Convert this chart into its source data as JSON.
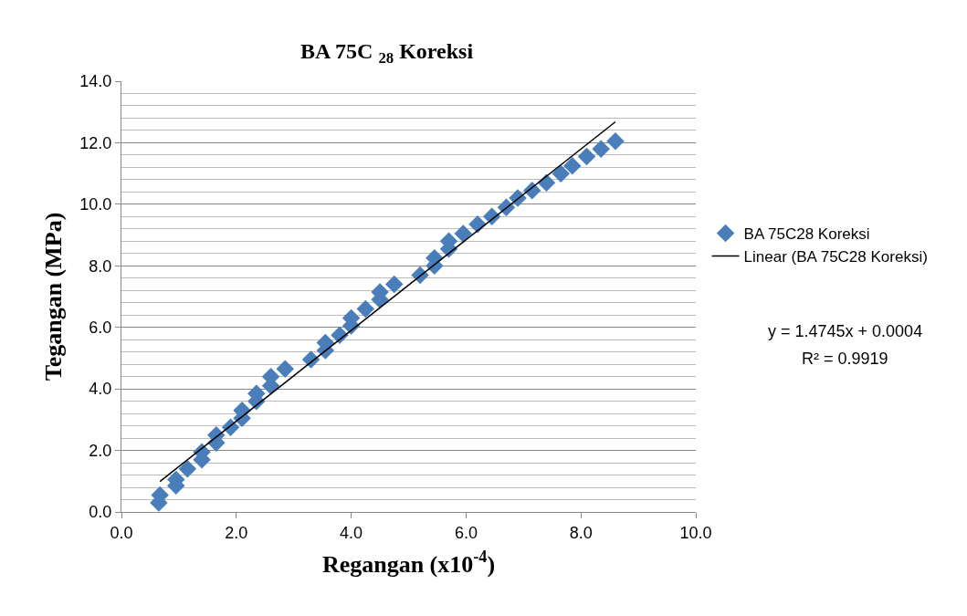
{
  "chart_data": {
    "type": "scatter",
    "title": "BA 75C $_{28}$ Koreksi",
    "xlabel": "Regangan (x10$^{-4}$)",
    "ylabel": "Tegangan (MPa)",
    "xlim": [
      0,
      10
    ],
    "xticks": [
      {
        "value": 0,
        "label": "0.0"
      },
      {
        "value": 2,
        "label": "2.0"
      },
      {
        "value": 4,
        "label": "4.0"
      },
      {
        "value": 6,
        "label": "6.0"
      },
      {
        "value": 8,
        "label": "8.0"
      },
      {
        "value": 10,
        "label": "10.0"
      }
    ],
    "ylim": [
      0,
      14
    ],
    "yticks": [
      {
        "value": 0,
        "label": "0.0"
      },
      {
        "value": 2,
        "label": "2.0"
      },
      {
        "value": 4,
        "label": "4.0"
      },
      {
        "value": 6,
        "label": "6.0"
      },
      {
        "value": 8,
        "label": "8.0"
      },
      {
        "value": 10,
        "label": "10.0"
      },
      {
        "value": 12,
        "label": "12.0"
      },
      {
        "value": 14,
        "label": "14.0"
      }
    ],
    "grid": "y",
    "legend": "right",
    "series": [
      {
        "name": "BA 75C28 Koreksi",
        "marker": "diamond",
        "color": "#4a7ebb",
        "x": [
          0.65,
          0.67,
          0.95,
          0.95,
          1.15,
          1.4,
          1.4,
          1.65,
          1.65,
          1.9,
          2.1,
          2.1,
          2.35,
          2.35,
          2.6,
          2.6,
          2.85,
          3.3,
          3.55,
          3.55,
          3.8,
          4.0,
          4.0,
          4.25,
          4.5,
          4.5,
          4.75,
          5.2,
          5.45,
          5.45,
          5.7,
          5.7,
          5.95,
          6.2,
          6.45,
          6.7,
          6.9,
          7.15,
          7.4,
          7.65,
          7.85,
          8.1,
          8.35,
          8.6
        ],
        "values": [
          0.3,
          0.55,
          0.85,
          1.05,
          1.4,
          1.7,
          1.95,
          2.25,
          2.5,
          2.75,
          3.05,
          3.3,
          3.6,
          3.85,
          4.1,
          4.4,
          4.65,
          4.95,
          5.25,
          5.5,
          5.75,
          6.05,
          6.3,
          6.6,
          6.9,
          7.15,
          7.4,
          7.7,
          8.0,
          8.25,
          8.55,
          8.8,
          9.05,
          9.35,
          9.6,
          9.9,
          10.2,
          10.45,
          10.7,
          11.0,
          11.25,
          11.55,
          11.8,
          12.05
        ]
      },
      {
        "name": "Linear (BA 75C28 Koreksi)",
        "type": "line",
        "marker": "none",
        "line_style": "solid",
        "color": "#000000",
        "x": [
          0.67,
          8.6
        ],
        "values": [
          0.99,
          12.68
        ]
      }
    ],
    "annotations": [
      "y = 1.4745x + 0.0004",
      "R² = 0.9919"
    ]
  }
}
